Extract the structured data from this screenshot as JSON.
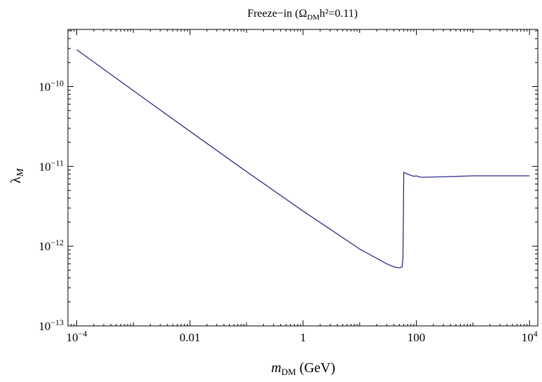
{
  "chart_data": {
    "type": "line",
    "title": {
      "prefix": "Freeze−in (",
      "omega": "Ω",
      "omega_sub": "DM",
      "suffix": "h²=0.11)"
    },
    "xlabel": {
      "main": "m",
      "sub": "DM",
      "unit": " (GeV)"
    },
    "ylabel": {
      "main": "λ",
      "sub": "M"
    },
    "x_scale": "log",
    "y_scale": "log",
    "xlim": [
      7e-05,
      14000
    ],
    "ylim": [
      1e-13,
      5.2e-10
    ],
    "x_ticks": [
      {
        "value": 0.0001,
        "base": "10",
        "exp": "−4"
      },
      {
        "value": 0.01,
        "text": "0.01"
      },
      {
        "value": 1,
        "text": "1"
      },
      {
        "value": 100,
        "text": "100"
      },
      {
        "value": 10000,
        "base": "10",
        "exp": "4"
      }
    ],
    "y_ticks": [
      {
        "value": 1e-13,
        "base": "10",
        "exp": "−13"
      },
      {
        "value": 1e-12,
        "base": "10",
        "exp": "−12"
      },
      {
        "value": 1e-11,
        "base": "10",
        "exp": "−11"
      },
      {
        "value": 1e-10,
        "base": "10",
        "exp": "−10"
      }
    ],
    "grid": false,
    "series": [
      {
        "color": "#2b2b8a",
        "points": [
          [
            0.0001,
            2.9e-10
          ],
          [
            0.001,
            8.9e-11
          ],
          [
            0.01,
            2.75e-11
          ],
          [
            0.1,
            8.6e-12
          ],
          [
            1,
            2.75e-12
          ],
          [
            10,
            9.2e-13
          ],
          [
            30,
            6e-13
          ],
          [
            40,
            5.5e-13
          ],
          [
            50,
            5.35e-13
          ],
          [
            56,
            5.5e-13
          ],
          [
            58,
            7e-13
          ],
          [
            59,
            2e-12
          ],
          [
            60,
            8.4e-12
          ],
          [
            70,
            8e-12
          ],
          [
            90,
            7.5e-12
          ],
          [
            100,
            7.6e-12
          ],
          [
            120,
            7.3e-12
          ],
          [
            300,
            7.4e-12
          ],
          [
            1000,
            7.6e-12
          ],
          [
            10000,
            7.6e-12
          ]
        ]
      }
    ]
  }
}
